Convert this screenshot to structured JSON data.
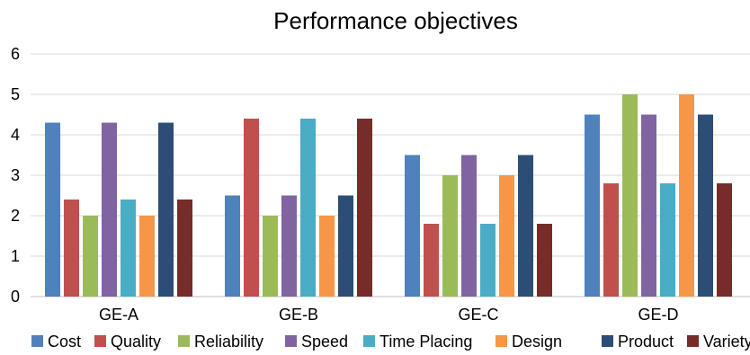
{
  "chart_data": {
    "type": "bar",
    "title": "Performance objectives",
    "xlabel": "",
    "ylabel": "",
    "ylim": [
      0,
      6
    ],
    "yticks": [
      0,
      1,
      2,
      3,
      4,
      5,
      6
    ],
    "grid": true,
    "legend_position": "bottom",
    "categories": [
      "GE-A",
      "GE-B",
      "GE-C",
      "GE-D"
    ],
    "series": [
      {
        "name": "Cost",
        "color": "#4F81BD",
        "values": [
          4.3,
          2.5,
          3.5,
          4.5
        ]
      },
      {
        "name": "Quality",
        "color": "#C0504D",
        "values": [
          2.4,
          4.4,
          1.8,
          2.8
        ]
      },
      {
        "name": "Reliability",
        "color": "#9BBB59",
        "values": [
          2.0,
          2.0,
          3.0,
          5.0
        ]
      },
      {
        "name": "Speed",
        "color": "#8064A2",
        "values": [
          4.3,
          2.5,
          3.5,
          4.5
        ]
      },
      {
        "name": "Time Placing",
        "color": "#4BACC6",
        "values": [
          2.4,
          4.4,
          1.8,
          2.8
        ]
      },
      {
        "name": "Design",
        "color": "#F79646",
        "values": [
          2.0,
          2.0,
          3.0,
          5.0
        ]
      },
      {
        "name": "Product",
        "color": "#2C4D75",
        "values": [
          4.3,
          2.5,
          3.5,
          4.5
        ]
      },
      {
        "name": "Variety",
        "color": "#772C2A",
        "values": [
          2.4,
          4.4,
          1.8,
          2.8
        ]
      }
    ]
  }
}
